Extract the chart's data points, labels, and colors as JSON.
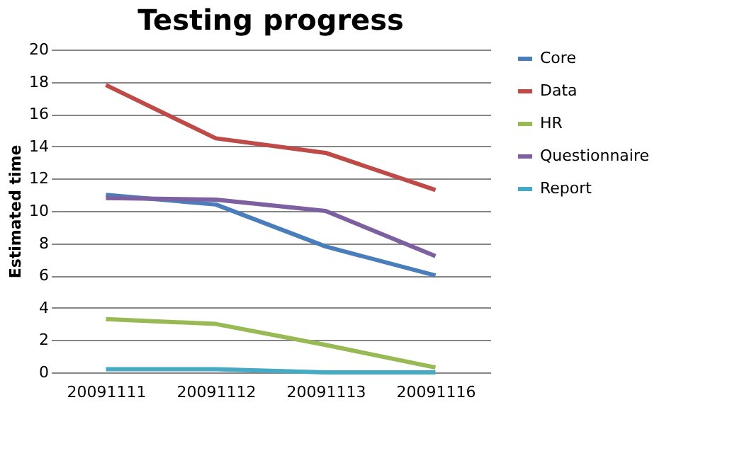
{
  "chart_data": {
    "type": "line",
    "title": "Testing progress",
    "ylabel": "Estimated time",
    "categories": [
      "20091111",
      "20091112",
      "20091113",
      "20091116"
    ],
    "series": [
      {
        "name": "Core",
        "color": "#4a7ebb",
        "values": [
          11,
          10.4,
          7.8,
          6
        ]
      },
      {
        "name": "Data",
        "color": "#be4b48",
        "values": [
          17.8,
          14.5,
          13.6,
          11.3
        ]
      },
      {
        "name": "HR",
        "color": "#98b954",
        "values": [
          3.3,
          3.0,
          1.7,
          0.3
        ]
      },
      {
        "name": "Questionnaire",
        "color": "#7d60a0",
        "values": [
          10.8,
          10.7,
          10,
          7.2
        ]
      },
      {
        "name": "Report",
        "color": "#46aac5",
        "values": [
          0.2,
          0.2,
          0,
          0
        ]
      }
    ],
    "ylim": [
      0,
      20
    ],
    "yticks": [
      0,
      2,
      4,
      6,
      8,
      10,
      12,
      14,
      16,
      18,
      20
    ],
    "grid": "y",
    "legend": "right",
    "marker": "none",
    "line_style": "solid"
  }
}
